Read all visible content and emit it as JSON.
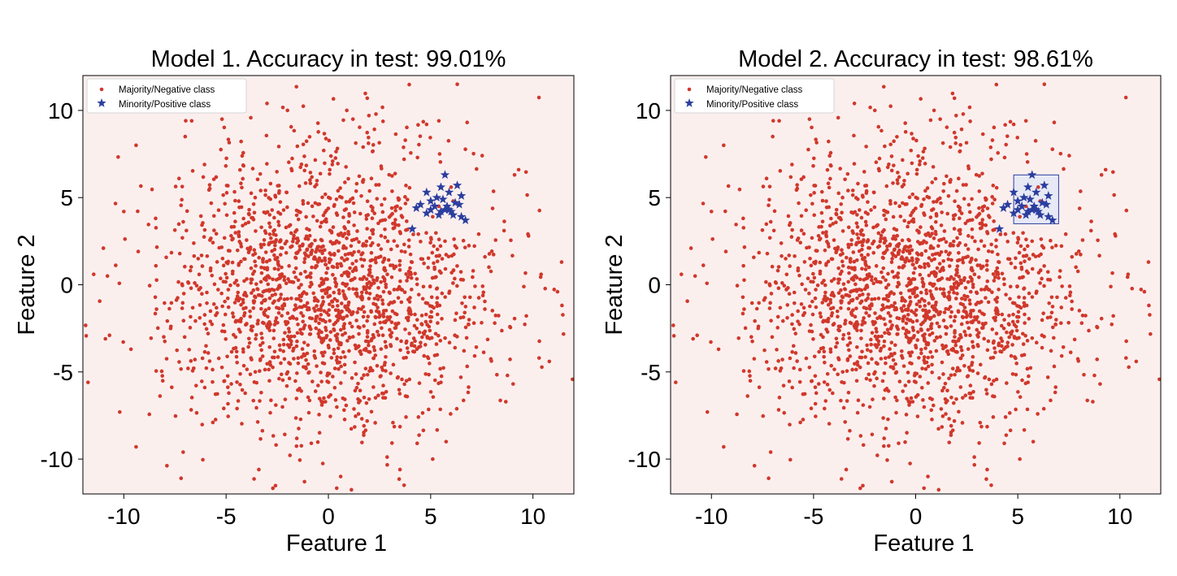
{
  "figure": {
    "background": "#ffffff",
    "axes_background": "#fbefee",
    "majority_color": "#d0382b",
    "minority_color": "#2c3e9e"
  },
  "chart_data": [
    {
      "type": "scatter",
      "title": "Model 1. Accuracy in test: 99.01%",
      "xlabel": "Feature 1",
      "ylabel": "Feature 2",
      "xlim": [
        -12,
        12
      ],
      "ylim": [
        -12,
        12
      ],
      "xticks": [
        -10,
        -5,
        0,
        5,
        10
      ],
      "xtick_labels": [
        "-10",
        "-5",
        "0",
        "5",
        "10"
      ],
      "yticks": [
        10,
        5,
        0,
        -5,
        -10
      ],
      "ytick_labels": [
        "10",
        "5",
        "0",
        "-5",
        "-10"
      ],
      "grid": false,
      "legend": {
        "placement": "top-left",
        "entries": [
          "Majority/Negative class",
          "Minority/Positive class"
        ]
      },
      "decision_region": null,
      "series": [
        {
          "name": "Majority/Negative class",
          "marker": "dot",
          "distribution": {
            "center": [
              0,
              0
            ],
            "std": [
              4,
              4
            ],
            "count": 1900,
            "seed": 7
          },
          "points": [
            [
              6.3,
              11.5
            ],
            [
              1.9,
              10.7
            ],
            [
              -3.0,
              10.4
            ],
            [
              -2.0,
              10.0
            ],
            [
              0.9,
              10.0
            ],
            [
              -5.2,
              9.5
            ],
            [
              1.2,
              9.5
            ],
            [
              4.8,
              9.2
            ],
            [
              5.4,
              9.4
            ],
            [
              -9.4,
              8.0
            ],
            [
              -7.0,
              8.5
            ],
            [
              9.3,
              6.6
            ],
            [
              9.1,
              6.3
            ],
            [
              -10.0,
              4.2
            ],
            [
              -11.0,
              2.1
            ],
            [
              -10.8,
              0.5
            ],
            [
              11.4,
              1.3
            ],
            [
              11.2,
              -0.4
            ],
            [
              10.4,
              0.6
            ],
            [
              -10.9,
              -3.1
            ],
            [
              -10.7,
              -2.9
            ],
            [
              10.3,
              -4.2
            ],
            [
              10.8,
              -4.4
            ],
            [
              -10.2,
              -7.3
            ],
            [
              -9.4,
              -9.3
            ],
            [
              -7.1,
              -9.6
            ],
            [
              -7.2,
              -11.1
            ],
            [
              -3.4,
              -10.6
            ],
            [
              3.7,
              -11.5
            ],
            [
              3.5,
              -10.6
            ],
            [
              0.6,
              -11.0
            ],
            [
              5.1,
              -10.0
            ],
            [
              5.5,
              -5.6
            ],
            [
              5.4,
              4.5
            ],
            [
              6.1,
              4.8
            ],
            [
              5.1,
              3.9
            ],
            [
              6.0,
              5.6
            ]
          ]
        },
        {
          "name": "Minority/Positive class",
          "marker": "star",
          "points": [
            [
              5.7,
              6.3
            ],
            [
              5.5,
              5.6
            ],
            [
              6.3,
              5.7
            ],
            [
              5.9,
              5.3
            ],
            [
              5.3,
              5.0
            ],
            [
              6.5,
              5.1
            ],
            [
              5.0,
              4.8
            ],
            [
              5.6,
              4.9
            ],
            [
              6.2,
              4.7
            ],
            [
              4.8,
              5.3
            ],
            [
              4.5,
              4.6
            ],
            [
              4.3,
              4.4
            ],
            [
              5.2,
              4.5
            ],
            [
              5.8,
              4.5
            ],
            [
              6.4,
              4.6
            ],
            [
              4.8,
              4.1
            ],
            [
              5.5,
              4.2
            ],
            [
              5.9,
              4.3
            ],
            [
              5.4,
              4.0
            ],
            [
              6.1,
              4.0
            ],
            [
              5.7,
              4.3
            ],
            [
              6.5,
              3.9
            ],
            [
              6.7,
              3.7
            ],
            [
              4.1,
              3.2
            ],
            [
              5.0,
              4.3
            ],
            [
              6.0,
              4.2
            ]
          ]
        }
      ]
    },
    {
      "type": "scatter",
      "title": "Model 2. Accuracy in test: 98.61%",
      "xlabel": "Feature 1",
      "ylabel": "Feature 2",
      "xlim": [
        -12,
        12
      ],
      "ylim": [
        -12,
        12
      ],
      "xticks": [
        -10,
        -5,
        0,
        5,
        10
      ],
      "xtick_labels": [
        "-10",
        "-5",
        "0",
        "5",
        "10"
      ],
      "yticks": [
        10,
        5,
        0,
        -5,
        -10
      ],
      "ytick_labels": [
        "10",
        "5",
        "0",
        "-5",
        "-10"
      ],
      "grid": false,
      "legend": {
        "placement": "top-left",
        "entries": [
          "Majority/Negative class",
          "Minority/Positive class"
        ]
      },
      "decision_region": {
        "x": [
          4.8,
          7.0
        ],
        "y": [
          3.5,
          6.3
        ],
        "fill": "#e7e9f5",
        "stroke": "#2c3e9e"
      },
      "series": [
        {
          "name": "Majority/Negative class",
          "marker": "dot",
          "distribution": {
            "center": [
              0,
              0
            ],
            "std": [
              4,
              4
            ],
            "count": 1900,
            "seed": 7
          },
          "points": [
            [
              6.3,
              11.5
            ],
            [
              1.9,
              10.7
            ],
            [
              -3.0,
              10.4
            ],
            [
              -2.0,
              10.0
            ],
            [
              0.9,
              10.0
            ],
            [
              -5.2,
              9.5
            ],
            [
              1.2,
              9.5
            ],
            [
              4.8,
              9.2
            ],
            [
              5.4,
              9.4
            ],
            [
              -9.4,
              8.0
            ],
            [
              -7.0,
              8.5
            ],
            [
              9.3,
              6.6
            ],
            [
              9.1,
              6.3
            ],
            [
              -10.0,
              4.2
            ],
            [
              -11.0,
              2.1
            ],
            [
              -10.8,
              0.5
            ],
            [
              11.4,
              1.3
            ],
            [
              11.2,
              -0.4
            ],
            [
              10.4,
              0.6
            ],
            [
              -10.9,
              -3.1
            ],
            [
              -10.7,
              -2.9
            ],
            [
              10.3,
              -4.2
            ],
            [
              10.8,
              -4.4
            ],
            [
              -10.2,
              -7.3
            ],
            [
              -9.4,
              -9.3
            ],
            [
              -7.1,
              -9.6
            ],
            [
              -7.2,
              -11.1
            ],
            [
              -3.4,
              -10.6
            ],
            [
              3.7,
              -11.5
            ],
            [
              3.5,
              -10.6
            ],
            [
              0.6,
              -11.0
            ],
            [
              5.1,
              -10.0
            ],
            [
              5.5,
              -5.6
            ],
            [
              5.4,
              4.5
            ],
            [
              6.1,
              4.8
            ],
            [
              5.1,
              3.9
            ],
            [
              6.0,
              5.6
            ]
          ]
        },
        {
          "name": "Minority/Positive class",
          "marker": "star",
          "points": [
            [
              5.7,
              6.3
            ],
            [
              5.5,
              5.6
            ],
            [
              6.3,
              5.7
            ],
            [
              5.9,
              5.3
            ],
            [
              5.3,
              5.0
            ],
            [
              6.5,
              5.1
            ],
            [
              5.0,
              4.8
            ],
            [
              5.6,
              4.9
            ],
            [
              6.2,
              4.7
            ],
            [
              4.8,
              5.3
            ],
            [
              4.5,
              4.6
            ],
            [
              4.3,
              4.4
            ],
            [
              5.2,
              4.5
            ],
            [
              5.8,
              4.5
            ],
            [
              6.4,
              4.6
            ],
            [
              4.8,
              4.1
            ],
            [
              5.5,
              4.2
            ],
            [
              5.9,
              4.3
            ],
            [
              5.4,
              4.0
            ],
            [
              6.1,
              4.0
            ],
            [
              5.7,
              4.3
            ],
            [
              6.5,
              3.9
            ],
            [
              6.7,
              3.7
            ],
            [
              4.1,
              3.2
            ],
            [
              5.0,
              4.3
            ],
            [
              6.0,
              4.2
            ]
          ]
        }
      ]
    }
  ]
}
